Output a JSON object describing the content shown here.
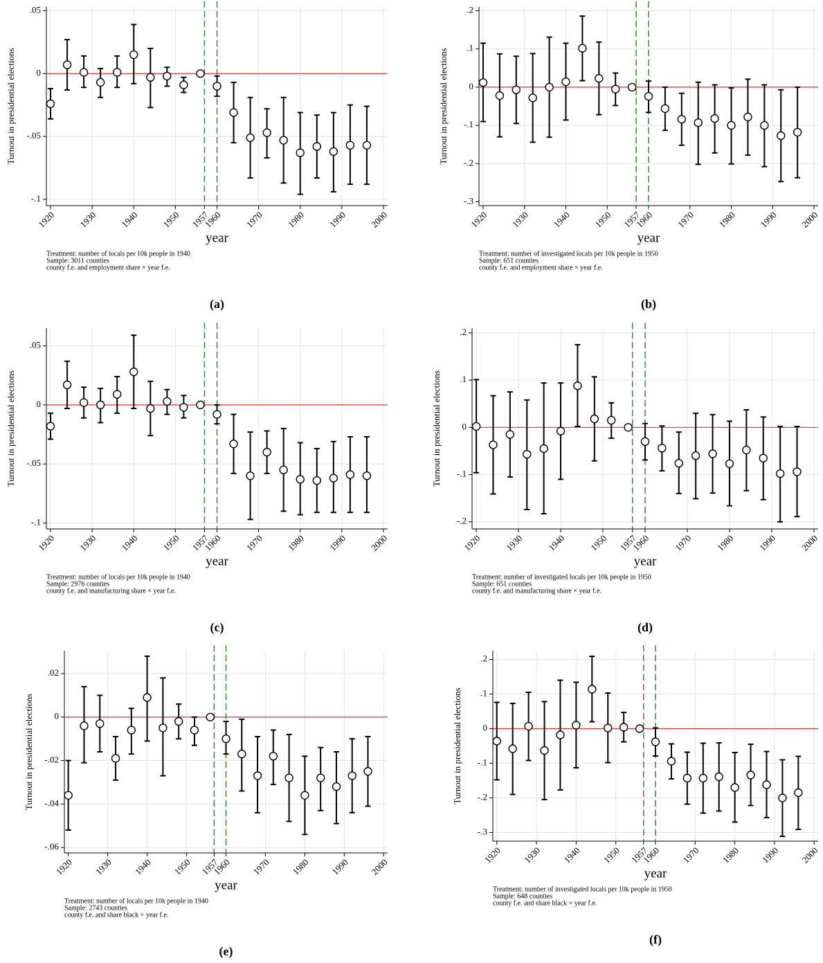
{
  "chart_data": [
    {
      "type": "errorbar",
      "caption": "(a)",
      "xlabel": "year",
      "ylabel": "Turnout in presidential elections",
      "notes": [
        "Treatment: number of locals per 10k people in 1940",
        "Sample: 3011 counties",
        "county f.e. and employment share × year f.e."
      ],
      "x": [
        1920,
        1924,
        1928,
        1932,
        1936,
        1940,
        1944,
        1948,
        1952,
        1956,
        1960,
        1964,
        1968,
        1972,
        1976,
        1980,
        1984,
        1988,
        1992,
        1996
      ],
      "values": [
        -0.024,
        0.007,
        0.001,
        -0.007,
        0.001,
        0.015,
        -0.003,
        -0.002,
        -0.009,
        0,
        -0.01,
        -0.031,
        -0.051,
        -0.047,
        -0.053,
        -0.063,
        -0.058,
        -0.062,
        -0.057,
        -0.057
      ],
      "lower": [
        -0.036,
        -0.013,
        -0.011,
        -0.019,
        -0.011,
        -0.008,
        -0.027,
        -0.01,
        -0.015,
        0,
        -0.018,
        -0.055,
        -0.083,
        -0.067,
        -0.087,
        -0.096,
        -0.083,
        -0.094,
        -0.088,
        -0.088
      ],
      "upper": [
        -0.012,
        0.027,
        0.014,
        0.004,
        0.014,
        0.039,
        0.02,
        0.005,
        -0.003,
        0,
        -0.002,
        -0.007,
        -0.019,
        -0.028,
        -0.019,
        -0.031,
        -0.033,
        -0.031,
        -0.025,
        -0.026
      ],
      "xlim": [
        1919,
        2001
      ],
      "xticks": [
        1920,
        1930,
        1940,
        1950,
        1957,
        1960,
        1970,
        1980,
        1990,
        2000
      ],
      "ylim": [
        -0.105,
        0.053
      ],
      "yticks": [
        {
          "value": 0.05,
          "label": ".05"
        },
        0,
        {
          "value": -0.05,
          "label": "-.05"
        },
        {
          "value": -0.1,
          "label": "-.1"
        }
      ],
      "hline": 0,
      "hline_color": "#e8312f",
      "vlines": [
        1957,
        1960
      ],
      "vline_color": "#2e8b2e",
      "color": "#000000",
      "grid": true
    },
    {
      "type": "errorbar",
      "caption": "(b)",
      "xlabel": "year",
      "ylabel": "Turnout in presidential elections",
      "notes": [
        "Treatment: number of investigated locals per 10k people in 1950",
        "Sample: 651 counties",
        "county f.e. and employment share × year f.e."
      ],
      "x": [
        1920,
        1924,
        1928,
        1932,
        1936,
        1940,
        1944,
        1948,
        1952,
        1956,
        1960,
        1964,
        1968,
        1972,
        1976,
        1980,
        1984,
        1988,
        1992,
        1996
      ],
      "values": [
        0.012,
        -0.022,
        -0.007,
        -0.028,
        0,
        0.014,
        0.102,
        0.023,
        -0.005,
        0,
        -0.024,
        -0.056,
        -0.084,
        -0.093,
        -0.082,
        -0.1,
        -0.078,
        -0.1,
        -0.127,
        -0.118
      ],
      "lower": [
        -0.09,
        -0.13,
        -0.095,
        -0.144,
        -0.131,
        -0.086,
        0.017,
        -0.072,
        -0.048,
        0,
        -0.066,
        -0.113,
        -0.152,
        -0.202,
        -0.172,
        -0.201,
        -0.178,
        -0.208,
        -0.247,
        -0.237
      ],
      "upper": [
        0.115,
        0.087,
        0.081,
        0.088,
        0.131,
        0.115,
        0.186,
        0.118,
        0.037,
        0,
        0.016,
        0,
        -0.016,
        0.013,
        0.006,
        -0.002,
        0.021,
        0.006,
        -0.007,
        0
      ],
      "xlim": [
        1919,
        2001
      ],
      "xticks": [
        1920,
        1930,
        1940,
        1950,
        1957,
        1960,
        1970,
        1980,
        1990,
        2000
      ],
      "ylim": [
        -0.31,
        0.21
      ],
      "yticks": [
        {
          "value": 0.2,
          "label": ".2"
        },
        {
          "value": 0.1,
          "label": ".1"
        },
        0,
        {
          "value": -0.1,
          "label": "-.1"
        },
        {
          "value": -0.2,
          "label": "-.2"
        },
        {
          "value": -0.3,
          "label": "-.3"
        }
      ],
      "hline": 0,
      "hline_color": "#e8312f",
      "vlines": [
        1957,
        1960
      ],
      "vline_color": "#2e8b2e",
      "color": "#000000",
      "grid": true
    },
    {
      "type": "errorbar",
      "caption": "(c)",
      "xlabel": "year",
      "ylabel": "Turnout in presidential elections",
      "notes": [
        "Treatment: number of locals per 10k people in 1940",
        "Sample: 2976 counties",
        "county f.e. and manufacturing share × year f.e."
      ],
      "x": [
        1920,
        1924,
        1928,
        1932,
        1936,
        1940,
        1944,
        1948,
        1952,
        1956,
        1960,
        1964,
        1968,
        1972,
        1976,
        1980,
        1984,
        1988,
        1992,
        1996
      ],
      "values": [
        -0.018,
        0.017,
        0.002,
        0,
        0.009,
        0.028,
        -0.003,
        0.003,
        -0.002,
        0,
        -0.008,
        -0.033,
        -0.06,
        -0.04,
        -0.055,
        -0.063,
        -0.064,
        -0.062,
        -0.059,
        -0.06
      ],
      "lower": [
        -0.029,
        -0.003,
        -0.011,
        -0.015,
        -0.007,
        -0.003,
        -0.026,
        -0.008,
        -0.011,
        0,
        -0.016,
        -0.058,
        -0.097,
        -0.058,
        -0.09,
        -0.093,
        -0.091,
        -0.091,
        -0.091,
        -0.091
      ],
      "upper": [
        -0.007,
        0.037,
        0.015,
        0.014,
        0.024,
        0.059,
        0.02,
        0.013,
        0.008,
        0,
        0,
        -0.008,
        -0.023,
        -0.022,
        -0.02,
        -0.032,
        -0.037,
        -0.031,
        -0.027,
        -0.027
      ],
      "xlim": [
        1919,
        2001
      ],
      "xticks": [
        1920,
        1930,
        1940,
        1950,
        1957,
        1960,
        1970,
        1980,
        1990,
        2000
      ],
      "ylim": [
        -0.105,
        0.065
      ],
      "yticks": [
        {
          "value": 0.05,
          "label": ".05"
        },
        0,
        {
          "value": -0.05,
          "label": "-.05"
        },
        {
          "value": -0.1,
          "label": "-.1"
        }
      ],
      "hline": 0,
      "hline_color": "#e8312f",
      "vlines": [
        1957,
        1960
      ],
      "vline_color": "#2e8b2e",
      "color": "#000000",
      "grid": true
    },
    {
      "type": "errorbar",
      "caption": "(d)",
      "xlabel": "year",
      "ylabel": "Turnout in presidential elections",
      "notes": [
        "Treatment: number of investigated locals per 10k people in 1950",
        "Sample: 651 counties",
        "county f.e. and manufacturing share × year f.e."
      ],
      "x": [
        1920,
        1924,
        1928,
        1932,
        1936,
        1940,
        1944,
        1948,
        1952,
        1956,
        1960,
        1964,
        1968,
        1972,
        1976,
        1980,
        1984,
        1988,
        1992,
        1996
      ],
      "values": [
        0.002,
        -0.037,
        -0.015,
        -0.057,
        -0.045,
        -0.008,
        0.088,
        0.018,
        0.015,
        0,
        -0.03,
        -0.044,
        -0.076,
        -0.06,
        -0.056,
        -0.077,
        -0.048,
        -0.065,
        -0.098,
        -0.094
      ],
      "lower": [
        -0.096,
        -0.141,
        -0.105,
        -0.174,
        -0.183,
        -0.11,
        0.002,
        -0.071,
        -0.023,
        0,
        -0.069,
        -0.092,
        -0.14,
        -0.151,
        -0.139,
        -0.166,
        -0.134,
        -0.153,
        -0.2,
        -0.189
      ],
      "upper": [
        0.101,
        0.067,
        0.075,
        0.058,
        0.094,
        0.094,
        0.175,
        0.107,
        0.052,
        0,
        0.008,
        0.003,
        -0.01,
        0.03,
        0.027,
        0.013,
        0.037,
        0.022,
        0.002,
        0.002
      ],
      "xlim": [
        1919,
        2001
      ],
      "xticks": [
        1920,
        1930,
        1940,
        1950,
        1957,
        1960,
        1970,
        1980,
        1990,
        2000
      ],
      "ylim": [
        -0.215,
        0.21
      ],
      "yticks": [
        {
          "value": 0.2,
          "label": ".2"
        },
        {
          "value": 0.1,
          "label": ".1"
        },
        0,
        {
          "value": -0.1,
          "label": "-.1"
        },
        {
          "value": -0.2,
          "label": "-.2"
        }
      ],
      "hline": 0,
      "hline_color": "#e8312f",
      "vlines": [
        1957,
        1960
      ],
      "vline_color": "#2e8b2e",
      "color": "#000000",
      "grid": true
    },
    {
      "type": "errorbar",
      "caption": "(e)",
      "xlabel": "year",
      "ylabel": "Turnout in presidential elections",
      "notes": [
        "Treatment: number of locals per 10k people in 1940",
        "Sample: 2743 counties",
        "county f.e. and share black × year f.e."
      ],
      "x": [
        1920,
        1924,
        1928,
        1932,
        1936,
        1940,
        1944,
        1948,
        1952,
        1956,
        1960,
        1964,
        1968,
        1972,
        1976,
        1980,
        1984,
        1988,
        1992,
        1996
      ],
      "values": [
        -0.036,
        -0.004,
        -0.003,
        -0.019,
        -0.006,
        0.009,
        -0.005,
        -0.002,
        -0.006,
        0,
        -0.01,
        -0.017,
        -0.027,
        -0.018,
        -0.028,
        -0.036,
        -0.028,
        -0.032,
        -0.027,
        -0.025
      ],
      "lower": [
        -0.052,
        -0.021,
        -0.016,
        -0.029,
        -0.017,
        -0.011,
        -0.027,
        -0.01,
        -0.013,
        0,
        -0.017,
        -0.034,
        -0.044,
        -0.031,
        -0.048,
        -0.054,
        -0.043,
        -0.049,
        -0.044,
        -0.041
      ],
      "upper": [
        -0.02,
        0.014,
        0.01,
        -0.009,
        0.004,
        0.028,
        0.018,
        0.006,
        0,
        0,
        -0.002,
        -0.001,
        -0.009,
        -0.006,
        -0.008,
        -0.018,
        -0.014,
        -0.016,
        -0.01,
        -0.009
      ],
      "xlim": [
        1919,
        2001
      ],
      "xticks": [
        1920,
        1930,
        1940,
        1950,
        1957,
        1960,
        1970,
        1980,
        1990,
        2000
      ],
      "ylim": [
        -0.0625,
        0.0305
      ],
      "yticks": [
        {
          "value": 0.02,
          "label": ".02"
        },
        0,
        {
          "value": -0.02,
          "label": "-.02"
        },
        {
          "value": -0.04,
          "label": "-.04"
        },
        {
          "value": -0.06,
          "label": "-.06"
        }
      ],
      "hline": 0,
      "hline_color": "#e8312f",
      "vlines": [
        1957,
        1960
      ],
      "vline_color": "#2e8b2e",
      "color": "#000000",
      "grid": true
    },
    {
      "type": "errorbar",
      "caption": "(f)",
      "xlabel": "year",
      "ylabel": "Turnout in presidential elections",
      "notes": [
        "Treatment: number of investigated locals per 10k people in 1950",
        "Sample: 648 counties",
        "county f.e. and share black × year f.e."
      ],
      "x": [
        1920,
        1924,
        1928,
        1932,
        1936,
        1940,
        1944,
        1948,
        1952,
        1956,
        1960,
        1964,
        1968,
        1972,
        1976,
        1980,
        1984,
        1988,
        1992,
        1996
      ],
      "values": [
        -0.036,
        -0.058,
        0.007,
        -0.063,
        -0.018,
        0.01,
        0.114,
        0.002,
        0.004,
        0,
        -0.038,
        -0.094,
        -0.143,
        -0.143,
        -0.139,
        -0.17,
        -0.134,
        -0.162,
        -0.2,
        -0.185
      ],
      "lower": [
        -0.148,
        -0.19,
        -0.092,
        -0.205,
        -0.177,
        -0.113,
        0.02,
        -0.098,
        -0.038,
        0,
        -0.079,
        -0.145,
        -0.218,
        -0.244,
        -0.238,
        -0.27,
        -0.222,
        -0.257,
        -0.311,
        -0.291
      ],
      "upper": [
        0.076,
        0.073,
        0.105,
        0.078,
        0.14,
        0.134,
        0.209,
        0.103,
        0.047,
        0,
        0.002,
        -0.044,
        -0.068,
        -0.042,
        -0.041,
        -0.069,
        -0.045,
        -0.066,
        -0.09,
        -0.08
      ],
      "xlim": [
        1919,
        2001
      ],
      "xticks": [
        1920,
        1930,
        1940,
        1950,
        1957,
        1960,
        1970,
        1980,
        1990,
        2000
      ],
      "ylim": [
        -0.325,
        0.225
      ],
      "yticks": [
        {
          "value": 0.2,
          "label": ".2"
        },
        {
          "value": 0.1,
          "label": ".1"
        },
        0,
        {
          "value": -0.1,
          "label": "-.1"
        },
        {
          "value": -0.2,
          "label": "-.2"
        },
        {
          "value": -0.3,
          "label": "-.3"
        }
      ],
      "hline": 0,
      "hline_color": "#e8312f",
      "vlines": [
        1957,
        1960
      ],
      "vline_color": "#2e8b2e",
      "color": "#000000",
      "grid": true
    }
  ]
}
